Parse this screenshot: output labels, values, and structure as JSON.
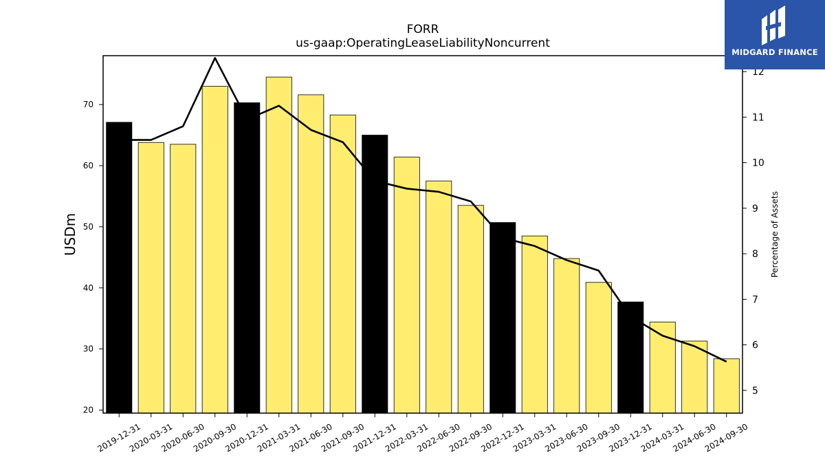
{
  "chart_data": {
    "type": "bar",
    "title": "FORR",
    "subtitle": "us-gaap:OperatingLeaseLiabilityNoncurrent",
    "ylabel": "USDm",
    "ylabel_right": "Percentage of Assets",
    "ylim": [
      19.5,
      78
    ],
    "ylim_right": [
      4.5,
      12.35
    ],
    "yticks": [
      20,
      30,
      40,
      50,
      60,
      70
    ],
    "yticks_right": [
      5,
      6,
      7,
      8,
      9,
      10,
      11,
      12
    ],
    "categories": [
      "2019-12-31",
      "2020-03-31",
      "2020-06-30",
      "2020-09-30",
      "2020-12-31",
      "2021-03-31",
      "2021-06-30",
      "2021-09-30",
      "2021-12-31",
      "2022-03-31",
      "2022-06-30",
      "2022-09-30",
      "2022-12-31",
      "2023-03-31",
      "2023-06-30",
      "2023-09-30",
      "2023-12-31",
      "2024-03-31",
      "2024-06-30",
      "2024-09-30"
    ],
    "series": [
      {
        "kind": "bar",
        "axis": "left",
        "values": [
          67.1,
          63.8,
          63.5,
          73.0,
          70.3,
          74.5,
          71.6,
          68.3,
          65.0,
          61.4,
          57.5,
          53.5,
          50.7,
          48.5,
          44.8,
          40.9,
          37.7,
          34.4,
          31.3,
          28.4
        ],
        "fiscal_year_end": [
          true,
          false,
          false,
          false,
          true,
          false,
          false,
          false,
          true,
          false,
          false,
          false,
          true,
          false,
          false,
          false,
          true,
          false,
          false,
          false
        ]
      },
      {
        "kind": "line",
        "axis": "right",
        "values": [
          10.5,
          10.5,
          10.8,
          12.3,
          10.95,
          11.25,
          10.72,
          10.45,
          9.6,
          9.43,
          9.36,
          9.15,
          8.35,
          8.17,
          7.86,
          7.63,
          6.62,
          6.2,
          5.97,
          5.63
        ]
      }
    ],
    "colors": {
      "bar_quarter": "#ffed6f",
      "bar_year_end": "#000000",
      "line": "#000000"
    },
    "grid": false,
    "legend": "none"
  },
  "logo": {
    "text": "MIDGARD FINANCE",
    "color": "#2b55a8"
  }
}
